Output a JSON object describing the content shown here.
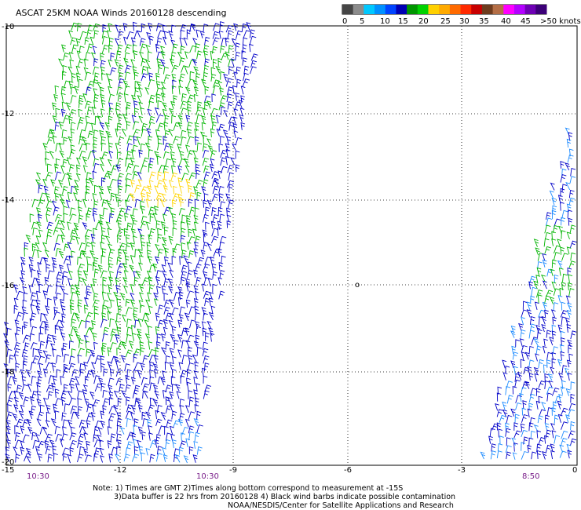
{
  "title": "ASCAT 25KM NOAA Winds 20160128 descending",
  "colorbar": {
    "labels": [
      "0",
      "5",
      "10",
      "15",
      "20",
      "25",
      "30",
      "35",
      "40",
      "45",
      ">50 knots"
    ],
    "colors": [
      "#454545",
      "#8c8c8c",
      "#00c8ff",
      "#0090ff",
      "#0044ff",
      "#0000b4",
      "#009600",
      "#00d200",
      "#ffd000",
      "#ffaa00",
      "#ff6a00",
      "#ff2a00",
      "#c80000",
      "#6e3c1e",
      "#b46e46",
      "#ff00ff",
      "#b400ff",
      "#6e00b4",
      "#3c0078"
    ]
  },
  "map": {
    "lat_labels": [
      "-10",
      "-12",
      "-14",
      "-16",
      "-18",
      "-20"
    ],
    "lon_labels": [
      "-15",
      "-12",
      "-9",
      "-6",
      "-3",
      "0"
    ],
    "island_marker": "o"
  },
  "times": [
    "10:30",
    "10:30",
    "8:50"
  ],
  "notes": {
    "line1": "Note: 1) Times are GMT 2)Times along bottom correspond to measurement at -15S",
    "line2": "3)Data buffer is 22 hrs from 20160128 4) Black wind barbs indicate possible contamination",
    "line3": "NOAA/NESDIS/Center for Satellite Applications and Research"
  },
  "barb_colors": {
    "green": "#00b400",
    "blue": "#0000c8",
    "cyan": "#1e8cff",
    "yellow": "#ffd500"
  }
}
